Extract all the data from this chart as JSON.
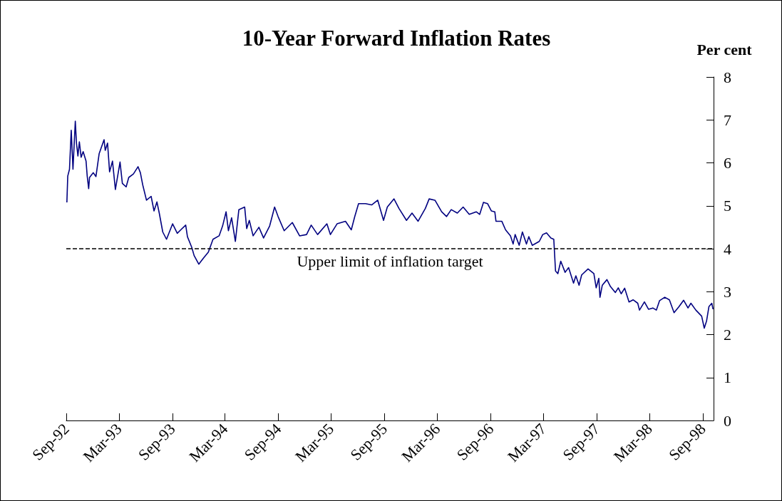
{
  "chart_data": {
    "type": "line",
    "title": "10-Year Forward Inflation Rates",
    "ylabel": "Per cent",
    "xlim": [
      "1992-09-01",
      "1998-10-08"
    ],
    "ylim": [
      0,
      8
    ],
    "yticks": [
      0,
      1,
      2,
      3,
      4,
      5,
      6,
      7,
      8
    ],
    "xticks": [
      {
        "value": "1992-09-01",
        "label": "Sep-92"
      },
      {
        "value": "1993-03-01",
        "label": "Mar-93"
      },
      {
        "value": "1993-09-01",
        "label": "Sep-93"
      },
      {
        "value": "1994-03-01",
        "label": "Mar-94"
      },
      {
        "value": "1994-09-01",
        "label": "Sep-94"
      },
      {
        "value": "1995-03-01",
        "label": "Mar-95"
      },
      {
        "value": "1995-09-01",
        "label": "Sep-95"
      },
      {
        "value": "1996-03-01",
        "label": "Mar-96"
      },
      {
        "value": "1996-09-01",
        "label": "Sep-96"
      },
      {
        "value": "1997-03-01",
        "label": "Mar-97"
      },
      {
        "value": "1997-09-01",
        "label": "Sep-97"
      },
      {
        "value": "1998-03-01",
        "label": "Mar-98"
      },
      {
        "value": "1998-09-01",
        "label": "Sep-98"
      }
    ],
    "grid": false,
    "marker": "none",
    "line_style": "solid",
    "ref_lines": [
      {
        "axis": "y",
        "value": 4,
        "label": "Upper limit of inflation target",
        "color": "#000000",
        "line_style": "dashed"
      }
    ],
    "x": [
      "1992-09-03",
      "1992-09-06",
      "1992-09-12",
      "1992-09-18",
      "1992-09-24",
      "1992-10-02",
      "1992-10-06",
      "1992-10-11",
      "1992-10-16",
      "1992-10-22",
      "1992-10-29",
      "1992-11-08",
      "1992-11-12",
      "1992-11-17",
      "1992-11-20",
      "1992-12-03",
      "1992-12-12",
      "1992-12-23",
      "1993-01-09",
      "1993-01-13",
      "1993-01-21",
      "1993-01-28",
      "1993-02-07",
      "1993-02-17",
      "1993-03-05",
      "1993-03-13",
      "1993-03-26",
      "1993-04-04",
      "1993-04-20",
      "1993-05-06",
      "1993-05-14",
      "1993-05-22",
      "1993-06-04",
      "1993-06-20",
      "1993-06-30",
      "1993-07-10",
      "1993-07-18",
      "1993-07-30",
      "1993-08-12",
      "1993-09-02",
      "1993-09-18",
      "1993-09-30",
      "1993-10-17",
      "1993-10-23",
      "1993-11-07",
      "1993-11-15",
      "1993-12-01",
      "1993-12-17",
      "1994-01-03",
      "1994-01-19",
      "1994-02-09",
      "1994-02-21",
      "1994-03-05",
      "1994-03-13",
      "1994-03-24",
      "1994-04-06",
      "1994-04-18",
      "1994-05-08",
      "1994-05-15",
      "1994-05-24",
      "1994-06-06",
      "1994-06-26",
      "1994-07-12",
      "1994-08-02",
      "1994-08-19",
      "1994-08-31",
      "1994-09-21",
      "1994-10-19",
      "1994-11-13",
      "1994-12-07",
      "1994-12-23",
      "1995-01-14",
      "1995-02-15",
      "1995-02-27",
      "1995-03-22",
      "1995-04-20",
      "1995-05-10",
      "1995-05-22",
      "1995-06-04",
      "1995-06-28",
      "1995-07-19",
      "1995-08-09",
      "1995-08-29",
      "1995-09-11",
      "1995-10-04",
      "1995-10-21",
      "1995-11-16",
      "1995-12-05",
      "1995-12-26",
      "1996-01-20",
      "1996-02-02",
      "1996-02-22",
      "1996-03-16",
      "1996-04-02",
      "1996-04-18",
      "1996-05-09",
      "1996-05-29",
      "1996-06-19",
      "1996-07-13",
      "1996-07-25",
      "1996-08-07",
      "1996-08-21",
      "1996-09-03",
      "1996-09-15",
      "1996-09-19",
      "1996-10-09",
      "1996-10-22",
      "1996-11-08",
      "1996-11-17",
      "1996-11-24",
      "1996-12-08",
      "1996-12-19",
      "1997-01-02",
      "1997-01-10",
      "1997-01-22",
      "1997-02-15",
      "1997-02-27",
      "1997-03-12",
      "1997-03-27",
      "1997-04-06",
      "1997-04-12",
      "1997-04-20",
      "1997-04-30",
      "1997-05-15",
      "1997-05-27",
      "1997-06-13",
      "1997-06-21",
      "1997-07-02",
      "1997-07-11",
      "1997-08-02",
      "1997-08-22",
      "1997-08-30",
      "1997-09-08",
      "1997-09-12",
      "1997-09-20",
      "1997-10-06",
      "1997-10-18",
      "1997-11-04",
      "1997-11-14",
      "1997-11-24",
      "1997-12-06",
      "1997-12-21",
      "1998-01-04",
      "1998-01-20",
      "1998-01-26",
      "1998-02-12",
      "1998-02-26",
      "1998-03-13",
      "1998-03-25",
      "1998-04-05",
      "1998-04-23",
      "1998-05-09",
      "1998-05-25",
      "1998-06-11",
      "1998-06-27",
      "1998-07-12",
      "1998-07-22",
      "1998-08-08",
      "1998-08-28",
      "1998-09-06",
      "1998-09-14",
      "1998-09-22",
      "1998-10-02",
      "1998-10-06"
    ],
    "series": [
      {
        "color": "#000080",
        "values": [
          5.08,
          5.69,
          5.85,
          6.76,
          5.85,
          6.97,
          6.46,
          6.16,
          6.49,
          6.13,
          6.26,
          6.04,
          5.69,
          5.4,
          5.66,
          5.77,
          5.68,
          6.21,
          6.54,
          6.29,
          6.46,
          5.79,
          6.04,
          5.38,
          6.02,
          5.52,
          5.44,
          5.66,
          5.74,
          5.91,
          5.77,
          5.49,
          5.13,
          5.22,
          4.88,
          5.09,
          4.83,
          4.39,
          4.22,
          4.58,
          4.36,
          4.44,
          4.55,
          4.28,
          4.03,
          3.84,
          3.64,
          3.78,
          3.92,
          4.22,
          4.3,
          4.53,
          4.86,
          4.42,
          4.72,
          4.17,
          4.91,
          4.97,
          4.47,
          4.66,
          4.3,
          4.5,
          4.25,
          4.53,
          4.97,
          4.75,
          4.42,
          4.61,
          4.3,
          4.33,
          4.55,
          4.33,
          4.58,
          4.33,
          4.58,
          4.64,
          4.44,
          4.75,
          5.05,
          5.05,
          5.02,
          5.13,
          4.66,
          4.97,
          5.16,
          4.94,
          4.66,
          4.83,
          4.64,
          4.94,
          5.16,
          5.13,
          4.86,
          4.75,
          4.91,
          4.83,
          4.97,
          4.8,
          4.86,
          4.8,
          5.08,
          5.05,
          4.88,
          4.86,
          4.64,
          4.64,
          4.44,
          4.3,
          4.11,
          4.33,
          4.08,
          4.39,
          4.11,
          4.28,
          4.08,
          4.17,
          4.33,
          4.37,
          4.25,
          4.22,
          3.48,
          3.42,
          3.71,
          3.45,
          3.56,
          3.2,
          3.37,
          3.15,
          3.39,
          3.53,
          3.42,
          3.09,
          3.31,
          2.87,
          3.15,
          3.28,
          3.12,
          2.98,
          3.09,
          2.95,
          3.08,
          2.76,
          2.81,
          2.73,
          2.57,
          2.76,
          2.59,
          2.62,
          2.57,
          2.79,
          2.87,
          2.81,
          2.51,
          2.65,
          2.8,
          2.62,
          2.73,
          2.57,
          2.43,
          2.15,
          2.32,
          2.65,
          2.73,
          2.59
        ]
      }
    ]
  }
}
